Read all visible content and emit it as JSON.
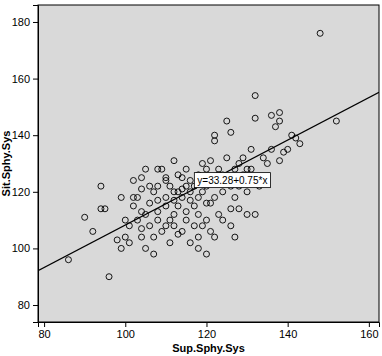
{
  "chart_data": {
    "type": "scatter",
    "x_label": "Sup.Sphy.Sys",
    "y_label": "Sit.Sphy.Sys",
    "annotation": "y=33.28+0.75*x",
    "fit_line": {
      "intercept": 33.28,
      "slope": 0.75
    },
    "marker": "open-circle",
    "color": "#000000",
    "xlim": [
      78.5,
      162.5
    ],
    "ylim": [
      74,
      186
    ],
    "xticks": [
      80,
      100,
      120,
      140,
      160
    ],
    "yticks": [
      80,
      100,
      120,
      140,
      160,
      180
    ],
    "grid": false,
    "x": [
      86,
      90,
      92,
      94,
      94,
      96,
      98,
      99,
      100,
      100,
      101,
      102,
      102,
      102,
      101,
      103,
      103,
      104,
      104,
      104,
      104,
      105,
      105,
      105,
      106,
      106,
      107,
      107,
      108,
      108,
      108,
      108,
      109,
      109,
      110,
      110,
      110,
      110,
      111,
      111,
      112,
      112,
      112,
      112,
      113,
      113,
      113,
      114,
      114,
      114,
      114,
      115,
      115,
      115,
      116,
      116,
      116,
      116,
      117,
      117,
      118,
      118,
      118,
      118,
      119,
      119,
      119,
      120,
      120,
      120,
      120,
      121,
      121,
      121,
      122,
      122,
      122,
      123,
      123,
      124,
      124,
      124,
      125,
      125,
      126,
      126,
      126,
      127,
      127,
      127,
      128,
      128,
      128,
      129,
      129,
      130,
      130,
      131,
      131,
      132,
      132,
      132,
      133,
      134,
      135,
      136,
      136,
      137,
      138,
      138,
      138,
      139,
      140,
      141,
      142,
      143,
      148,
      152,
      130,
      122,
      126,
      118,
      110,
      106,
      108,
      112,
      115,
      117,
      119,
      121,
      123,
      104,
      107,
      111,
      113,
      120,
      99,
      95
    ],
    "values": [
      96,
      111,
      106,
      122,
      114,
      90,
      103,
      100,
      110,
      104,
      102,
      115,
      118,
      124,
      108,
      118,
      110,
      107,
      113,
      121,
      125,
      128,
      112,
      100,
      108,
      116,
      120,
      104,
      110,
      122,
      117,
      113,
      128,
      106,
      118,
      115,
      125,
      124,
      110,
      102,
      108,
      117,
      112,
      131,
      120,
      115,
      105,
      106,
      121,
      118,
      125,
      113,
      128,
      110,
      124,
      102,
      117,
      120,
      122,
      108,
      126,
      112,
      118,
      104,
      130,
      108,
      120,
      110,
      116,
      128,
      98,
      131,
      106,
      123,
      140,
      138,
      118,
      126,
      112,
      110,
      120,
      126,
      132,
      145,
      141,
      114,
      122,
      128,
      104,
      118,
      130,
      114,
      122,
      126,
      132,
      128,
      112,
      135,
      128,
      154,
      146,
      112,
      122,
      132,
      130,
      147,
      135,
      143,
      145,
      131,
      148,
      134,
      135,
      140,
      139,
      137,
      176,
      145,
      120,
      104,
      108,
      100,
      108,
      122,
      128,
      120,
      122,
      115,
      124,
      116,
      128,
      104,
      98,
      122,
      126,
      122,
      118,
      114
    ]
  }
}
